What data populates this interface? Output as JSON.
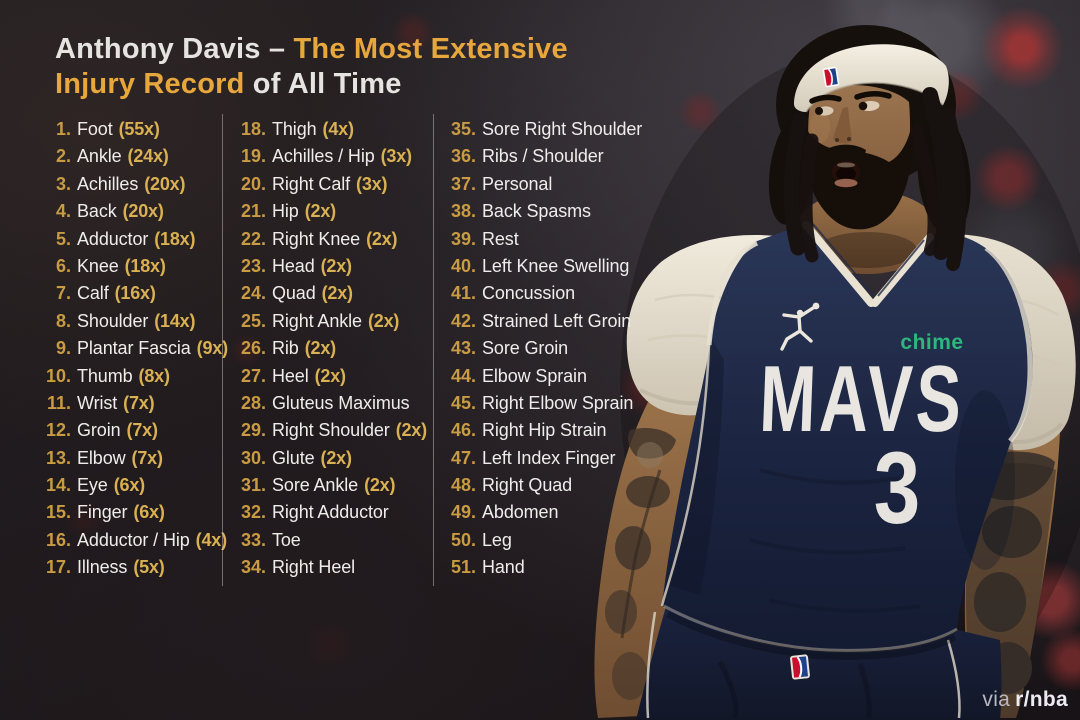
{
  "title": {
    "part1": "Anthony Davis – ",
    "part2": "The Most Extensive",
    "part3": "Injury Record",
    "part4": " of All Time"
  },
  "list": {
    "columns": [
      {
        "items": [
          {
            "num": "1.",
            "label": "Foot",
            "count": "(55x)"
          },
          {
            "num": "2.",
            "label": "Ankle",
            "count": "(24x)"
          },
          {
            "num": "3.",
            "label": "Achilles",
            "count": "(20x)"
          },
          {
            "num": "4.",
            "label": "Back",
            "count": "(20x)"
          },
          {
            "num": "5.",
            "label": "Adductor",
            "count": "(18x)"
          },
          {
            "num": "6.",
            "label": "Knee",
            "count": "(18x)"
          },
          {
            "num": "7.",
            "label": "Calf",
            "count": "(16x)"
          },
          {
            "num": "8.",
            "label": "Shoulder",
            "count": "(14x)"
          },
          {
            "num": "9.",
            "label": "Plantar Fascia",
            "count": "(9x)"
          },
          {
            "num": "10.",
            "label": "Thumb",
            "count": "(8x)"
          },
          {
            "num": "11.",
            "label": "Wrist",
            "count": "(7x)"
          },
          {
            "num": "12.",
            "label": "Groin",
            "count": "(7x)"
          },
          {
            "num": "13.",
            "label": "Elbow",
            "count": "(7x)"
          },
          {
            "num": "14.",
            "label": "Eye",
            "count": "(6x)"
          },
          {
            "num": "15.",
            "label": "Finger",
            "count": "(6x)"
          },
          {
            "num": "16.",
            "label": "Adductor / Hip",
            "count": "(4x)"
          },
          {
            "num": "17.",
            "label": "Illness",
            "count": "(5x)"
          }
        ]
      },
      {
        "items": [
          {
            "num": "18.",
            "label": "Thigh",
            "count": "(4x)"
          },
          {
            "num": "19.",
            "label": "Achilles / Hip",
            "count": "(3x)"
          },
          {
            "num": "20.",
            "label": "Right Calf",
            "count": "(3x)"
          },
          {
            "num": "21.",
            "label": "Hip",
            "count": "(2x)"
          },
          {
            "num": "22.",
            "label": "Right Knee",
            "count": "(2x)"
          },
          {
            "num": "23.",
            "label": "Head",
            "count": "(2x)"
          },
          {
            "num": "24.",
            "label": "Quad",
            "count": "(2x)"
          },
          {
            "num": "25.",
            "label": "Right Ankle",
            "count": "(2x)"
          },
          {
            "num": "26.",
            "label": "Rib",
            "count": "(2x)"
          },
          {
            "num": "27.",
            "label": "Heel",
            "count": "(2x)"
          },
          {
            "num": "28.",
            "label": "Gluteus Maximus",
            "count": ""
          },
          {
            "num": "29.",
            "label": "Right Shoulder",
            "count": "(2x)"
          },
          {
            "num": "30.",
            "label": "Glute",
            "count": "(2x)"
          },
          {
            "num": "31.",
            "label": "Sore Ankle",
            "count": "(2x)"
          },
          {
            "num": "32.",
            "label": "Right Adductor",
            "count": ""
          },
          {
            "num": "33.",
            "label": "Toe",
            "count": ""
          },
          {
            "num": "34.",
            "label": "Right Heel",
            "count": ""
          }
        ]
      },
      {
        "items": [
          {
            "num": "35.",
            "label": "Sore Right Shoulder",
            "count": ""
          },
          {
            "num": "36.",
            "label": "Ribs / Shoulder",
            "count": ""
          },
          {
            "num": "37.",
            "label": "Personal",
            "count": ""
          },
          {
            "num": "38.",
            "label": "Back Spasms",
            "count": ""
          },
          {
            "num": "39.",
            "label": "Rest",
            "count": ""
          },
          {
            "num": "40.",
            "label": "Left Knee Swelling",
            "count": ""
          },
          {
            "num": "41.",
            "label": "Concussion",
            "count": ""
          },
          {
            "num": "42.",
            "label": "Strained Left Groin",
            "count": ""
          },
          {
            "num": "43.",
            "label": "Sore Groin",
            "count": ""
          },
          {
            "num": "44.",
            "label": "Elbow Sprain",
            "count": ""
          },
          {
            "num": "45.",
            "label": "Right Elbow Sprain",
            "count": ""
          },
          {
            "num": "46.",
            "label": "Right Hip Strain",
            "count": ""
          },
          {
            "num": "47.",
            "label": "Left Index Finger",
            "count": ""
          },
          {
            "num": "48.",
            "label": "Right Quad",
            "count": ""
          },
          {
            "num": "49.",
            "label": "Abdomen",
            "count": ""
          },
          {
            "num": "50.",
            "label": "Leg",
            "count": ""
          },
          {
            "num": "51.",
            "label": "Hand",
            "count": ""
          }
        ]
      }
    ]
  },
  "photo": {
    "jersey_wordmark": "MAVS",
    "jersey_number": "3",
    "sponsor": "chime"
  },
  "watermark": {
    "prefix": "via",
    "subreddit": "r/nba"
  },
  "colors": {
    "accent_gold": "#e7a73c",
    "number_gold": "#c99b42",
    "count_gold": "#d9b052",
    "text_white": "#efedeb",
    "jersey_navy": "#1b2440",
    "chime_green": "#2eb67d",
    "bokeh_red": "#ac3434"
  }
}
